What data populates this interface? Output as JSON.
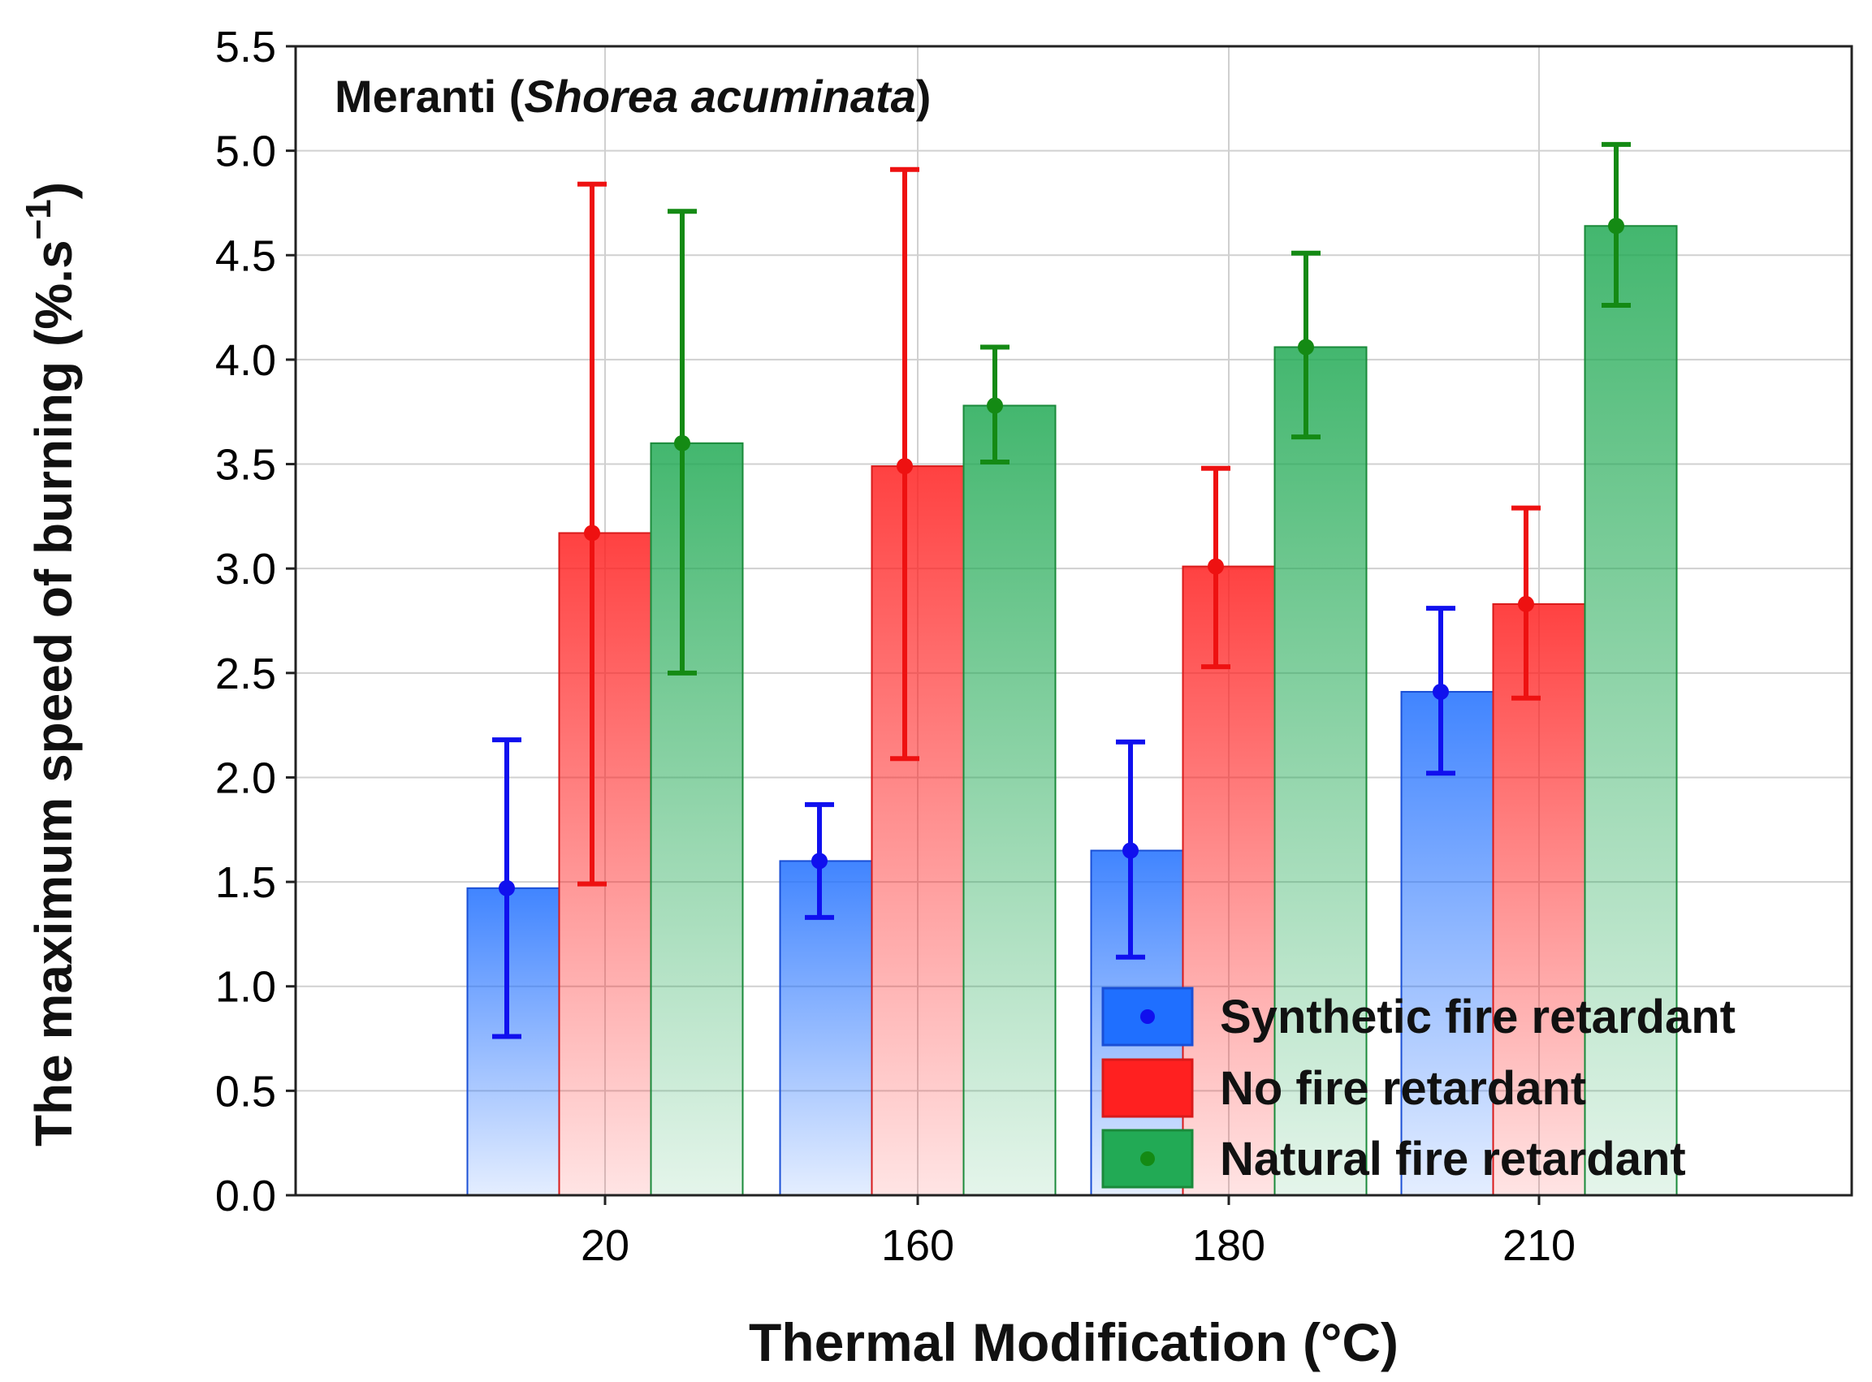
{
  "chart_data": {
    "type": "bar",
    "title_main": "Meranti (",
    "title_italic": "Shorea acuminata",
    "title_end": ")",
    "xlabel": "Thermal Modification (°C)",
    "ylabel_main": "The maximum speed of burning  (%.s",
    "ylabel_sup": "−1",
    "ylabel_end": ")",
    "ylim": [
      0,
      5.5
    ],
    "yticks": [
      "0.0",
      "0.5",
      "1.0",
      "1.5",
      "2.0",
      "2.5",
      "3.0",
      "3.5",
      "4.0",
      "4.5",
      "5.0",
      "5.5"
    ],
    "categories": [
      "20",
      "160",
      "180",
      "210"
    ],
    "grid": true,
    "legend_position": "bottom-right",
    "series": [
      {
        "name": "Synthetic fire retardant",
        "color": "#1f6fff",
        "stroke": "#1a4fd6",
        "err_color": "#1010ee",
        "values": [
          1.47,
          1.6,
          1.65,
          2.41
        ],
        "err_low": [
          0.76,
          1.33,
          1.14,
          2.02
        ],
        "err_high": [
          2.18,
          1.87,
          2.17,
          2.81
        ]
      },
      {
        "name": "No fire retardant",
        "color": "#ff2020",
        "stroke": "#d91a1a",
        "err_color": "#ee1111",
        "values": [
          3.17,
          3.49,
          3.01,
          2.83
        ],
        "err_low": [
          1.49,
          2.09,
          2.53,
          2.38
        ],
        "err_high": [
          4.84,
          4.91,
          3.48,
          3.29
        ]
      },
      {
        "name": "Natural fire retardant",
        "color": "#22aa55",
        "stroke": "#1a8a3a",
        "err_color": "#148a14",
        "values": [
          3.6,
          3.78,
          4.06,
          4.64
        ],
        "err_low": [
          2.5,
          3.51,
          3.63,
          4.26
        ],
        "err_high": [
          4.71,
          4.06,
          4.51,
          5.03
        ]
      }
    ]
  }
}
